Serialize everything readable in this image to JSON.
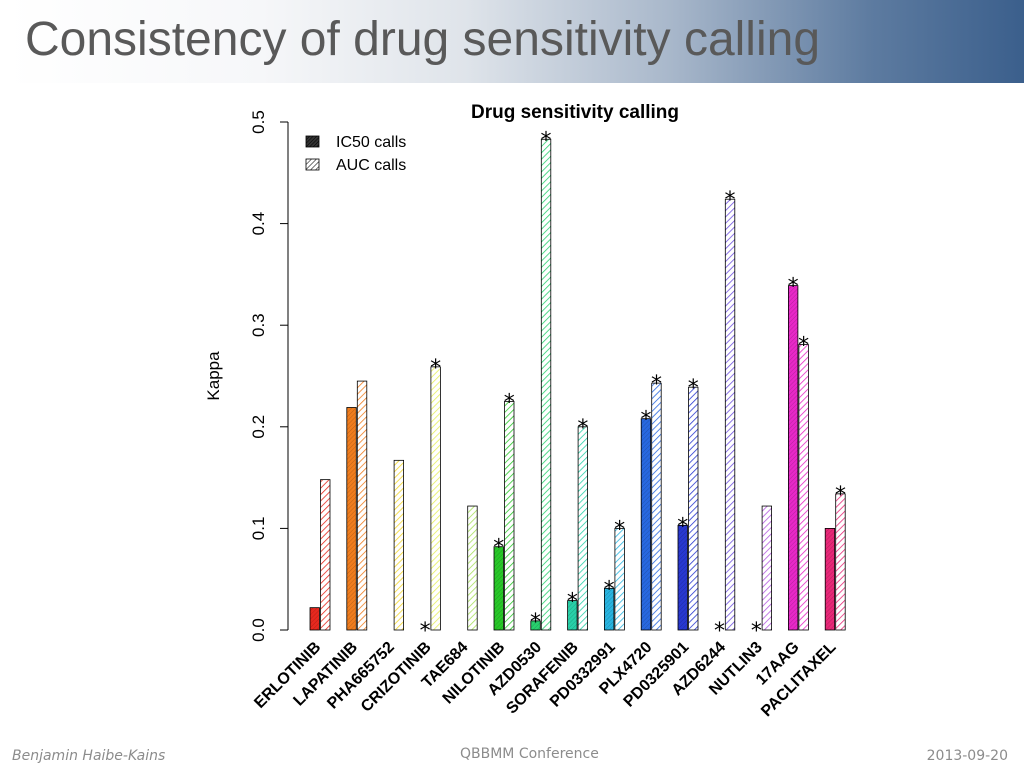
{
  "slide": {
    "title": "Consistency of drug sensitivity calling",
    "footer_left": "Benjamin Haibe-Kains",
    "footer_center": "QBBMM Conference",
    "footer_right": "2013-09-20"
  },
  "chart_data": {
    "type": "bar",
    "title": "Drug sensitivity calling",
    "xlabel": "",
    "ylabel": "Kappa",
    "ylim": [
      0,
      0.5
    ],
    "yticks": [
      0.0,
      0.1,
      0.2,
      0.3,
      0.4,
      0.5
    ],
    "ytick_labels": [
      "0.0",
      "0.1",
      "0.2",
      "0.3",
      "0.4",
      "0.5"
    ],
    "legend_position": "top-left",
    "grid": false,
    "categories": [
      "ERLOTINIB",
      "LAPATINIB",
      "PHA665752",
      "CRIZOTINIB",
      "TAE684",
      "NILOTINIB",
      "AZD0530",
      "SORAFENIB",
      "PD0332991",
      "PLX4720",
      "PD0325901",
      "AZD6244",
      "NUTLIN3",
      "17AAG",
      "PACLITAXEL"
    ],
    "colors": [
      "#e8281e",
      "#f07d1e",
      "#f2d62a",
      "#e6ef5a",
      "#a6e05a",
      "#28c828",
      "#28d06e",
      "#28d0a8",
      "#28b4e0",
      "#2868e0",
      "#2838d0",
      "#6e50e0",
      "#b45ae0",
      "#e828c8",
      "#e82878"
    ],
    "series": [
      {
        "name": "IC50 calls",
        "pattern": "dense",
        "values": [
          0.022,
          0.219,
          0.0,
          0.0,
          0.0,
          0.082,
          0.009,
          0.029,
          0.041,
          0.208,
          0.103,
          0.0,
          0.0,
          0.339,
          0.1
        ],
        "significant": [
          false,
          false,
          false,
          true,
          false,
          true,
          true,
          true,
          true,
          true,
          true,
          true,
          true,
          true,
          false
        ]
      },
      {
        "name": "AUC calls",
        "pattern": "hatched",
        "values": [
          0.148,
          0.245,
          0.167,
          0.259,
          0.122,
          0.225,
          0.483,
          0.2,
          0.1,
          0.243,
          0.239,
          0.424,
          0.122,
          0.281,
          0.134
        ],
        "significant": [
          false,
          false,
          false,
          true,
          false,
          true,
          true,
          true,
          true,
          true,
          true,
          true,
          false,
          true,
          true
        ]
      }
    ],
    "significance_marker": "*"
  }
}
